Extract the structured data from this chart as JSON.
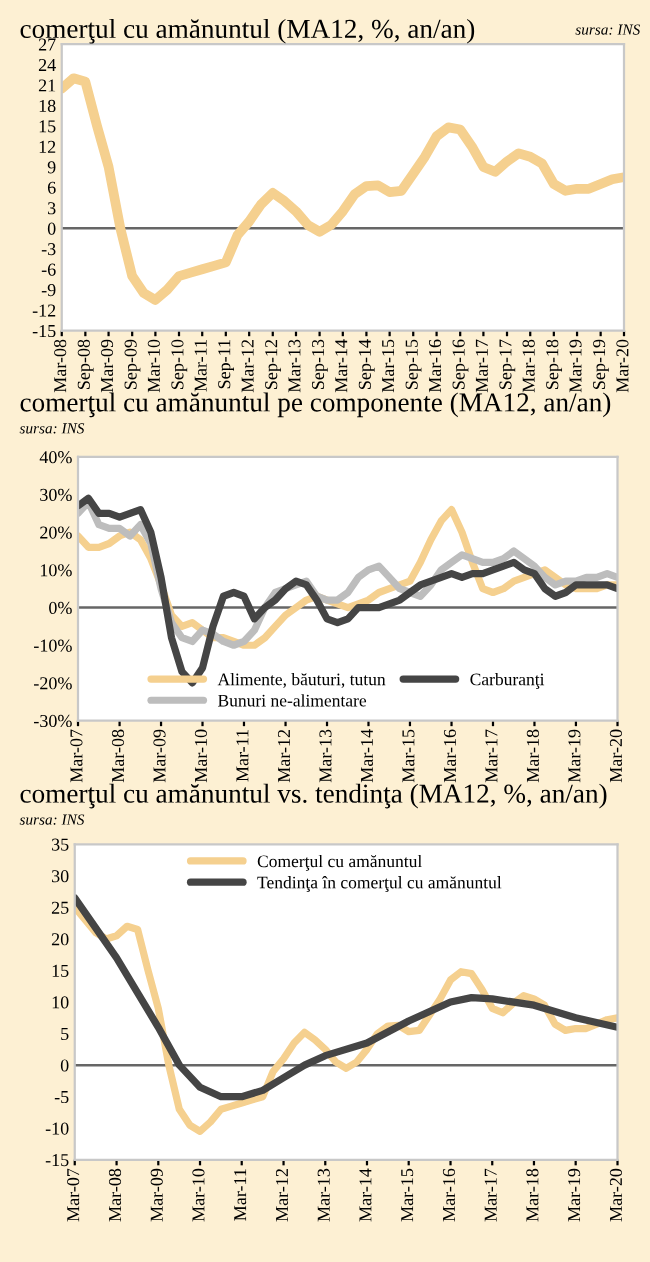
{
  "chart_data": [
    {
      "type": "line",
      "title": "comerţul cu amănuntul (MA12, %, an/an)",
      "annotations": [
        "sursa: INS"
      ],
      "grid": false,
      "legend": false,
      "ref_lines": [
        {
          "axis": "y",
          "value": 0,
          "color": "#666666"
        }
      ],
      "x": [
        "2008-03",
        "2008-06",
        "2008-09",
        "2008-12",
        "2009-03",
        "2009-06",
        "2009-09",
        "2009-12",
        "2010-03",
        "2010-06",
        "2010-09",
        "2010-12",
        "2011-03",
        "2011-06",
        "2011-09",
        "2011-12",
        "2012-03",
        "2012-06",
        "2012-09",
        "2012-12",
        "2013-03",
        "2013-06",
        "2013-09",
        "2013-12",
        "2014-03",
        "2014-06",
        "2014-09",
        "2014-12",
        "2015-03",
        "2015-06",
        "2015-09",
        "2015-12",
        "2016-03",
        "2016-06",
        "2016-09",
        "2016-12",
        "2017-03",
        "2017-06",
        "2017-09",
        "2017-12",
        "2018-03",
        "2018-06",
        "2018-09",
        "2018-12",
        "2019-03",
        "2019-06",
        "2019-09",
        "2019-12",
        "2020-03"
      ],
      "series": [
        {
          "color": "#f5d08f",
          "values": [
            20.5,
            22,
            21.5,
            15,
            9,
            0,
            -7,
            -9.5,
            -10.5,
            -9,
            -7,
            -6.5,
            -6,
            -5.5,
            -5,
            -1,
            1,
            3.5,
            5.2,
            4,
            2.5,
            0.5,
            -0.5,
            0.5,
            2.5,
            5,
            6.2,
            6.3,
            5.3,
            5.5,
            8,
            10.5,
            13.5,
            14.8,
            14.5,
            12,
            9,
            8.3,
            9.8,
            11,
            10.5,
            9.5,
            6.5,
            5.5,
            5.8,
            5.8,
            6.5,
            7.2,
            7.5
          ]
        }
      ],
      "xlim": [
        "2008-03",
        "2020-03"
      ],
      "ylim": [
        -15,
        27
      ],
      "yticks": [
        -15,
        -12,
        -9,
        -6,
        -3,
        0,
        3,
        6,
        9,
        12,
        15,
        18,
        21,
        24,
        27
      ],
      "xticks": [
        {
          "value": "2008-03",
          "label": "Mar-08"
        },
        {
          "value": "2008-09",
          "label": "Sep-08"
        },
        {
          "value": "2009-03",
          "label": "Mar-09"
        },
        {
          "value": "2009-09",
          "label": "Sep-09"
        },
        {
          "value": "2010-03",
          "label": "Mar-10"
        },
        {
          "value": "2010-09",
          "label": "Sep-10"
        },
        {
          "value": "2011-03",
          "label": "Mar-11"
        },
        {
          "value": "2011-09",
          "label": "Sep-11"
        },
        {
          "value": "2012-03",
          "label": "Mar-12"
        },
        {
          "value": "2012-09",
          "label": "Sep-12"
        },
        {
          "value": "2013-03",
          "label": "Mar-13"
        },
        {
          "value": "2013-09",
          "label": "Sep-13"
        },
        {
          "value": "2014-03",
          "label": "Mar-14"
        },
        {
          "value": "2014-09",
          "label": "Sep-14"
        },
        {
          "value": "2015-03",
          "label": "Mar-15"
        },
        {
          "value": "2015-09",
          "label": "Sep-15"
        },
        {
          "value": "2016-03",
          "label": "Mar-16"
        },
        {
          "value": "2016-09",
          "label": "Sep-16"
        },
        {
          "value": "2017-03",
          "label": "Mar-17"
        },
        {
          "value": "2017-09",
          "label": "Sep-17"
        },
        {
          "value": "2018-03",
          "label": "Mar-18"
        },
        {
          "value": "2018-09",
          "label": "Sep-18"
        },
        {
          "value": "2019-03",
          "label": "Mar-19"
        },
        {
          "value": "2019-09",
          "label": "Sep-19"
        },
        {
          "value": "2020-03",
          "label": "Mar-20"
        }
      ]
    },
    {
      "type": "line",
      "title": "comerţul cu amănuntul pe componente (MA12, an/an)",
      "annotations": [
        "sursa: INS"
      ],
      "grid": false,
      "legend": "bottom",
      "ref_lines": [
        {
          "axis": "y",
          "value": 0,
          "color": "#666666"
        }
      ],
      "x": [
        "2007-03",
        "2007-06",
        "2007-09",
        "2007-12",
        "2008-03",
        "2008-06",
        "2008-09",
        "2008-12",
        "2009-03",
        "2009-06",
        "2009-09",
        "2009-12",
        "2010-03",
        "2010-06",
        "2010-09",
        "2010-12",
        "2011-03",
        "2011-06",
        "2011-09",
        "2011-12",
        "2012-03",
        "2012-06",
        "2012-09",
        "2012-12",
        "2013-03",
        "2013-06",
        "2013-09",
        "2013-12",
        "2014-03",
        "2014-06",
        "2014-09",
        "2014-12",
        "2015-03",
        "2015-06",
        "2015-09",
        "2015-12",
        "2016-03",
        "2016-06",
        "2016-09",
        "2016-12",
        "2017-03",
        "2017-06",
        "2017-09",
        "2017-12",
        "2018-03",
        "2018-06",
        "2018-09",
        "2018-12",
        "2019-03",
        "2019-06",
        "2019-09",
        "2019-12",
        "2020-03"
      ],
      "series": [
        {
          "name": "Alimente, băuturi, tutun",
          "color": "#f5d08f",
          "values": [
            19,
            16,
            16,
            17,
            19,
            20,
            18,
            13,
            6,
            -2,
            -5,
            -4,
            -6,
            -8,
            -8,
            -9,
            -10,
            -10,
            -8,
            -5,
            -2,
            0,
            2,
            3,
            2,
            1,
            0,
            1,
            2,
            4,
            5,
            6,
            7,
            12,
            18,
            23,
            26,
            20,
            12,
            5,
            4,
            5,
            7,
            8,
            9,
            10,
            8,
            6,
            5,
            5,
            5,
            6,
            6
          ]
        },
        {
          "name": "Bunuri ne-alimentare",
          "color": "#bdbdbd",
          "values": [
            25,
            28,
            22,
            21,
            21,
            19,
            22,
            17,
            5,
            -4,
            -8,
            -9,
            -6,
            -7,
            -9,
            -10,
            -9,
            -6,
            0,
            4,
            5,
            6,
            7,
            3,
            2,
            2,
            4,
            8,
            10,
            11,
            8,
            5,
            4,
            3,
            6,
            10,
            12,
            14,
            13,
            12,
            12,
            13,
            15,
            13,
            11,
            8,
            6,
            7,
            7,
            8,
            8,
            9,
            8
          ]
        },
        {
          "name": "Carburanţi",
          "color": "#454545",
          "values": [
            27,
            29,
            25,
            25,
            24,
            25,
            26,
            20,
            8,
            -8,
            -17,
            -20,
            -16,
            -5,
            3,
            4,
            3,
            -3,
            0,
            2,
            5,
            7,
            6,
            2,
            -3,
            -4,
            -3,
            0,
            0,
            0,
            1,
            2,
            4,
            6,
            7,
            8,
            9,
            8,
            9,
            9,
            10,
            11,
            12,
            10,
            9,
            5,
            3,
            4,
            6,
            6,
            6,
            6,
            5
          ]
        }
      ],
      "xlim": [
        "2007-03",
        "2020-03"
      ],
      "ylim": [
        -30,
        40
      ],
      "yticks": [
        {
          "value": -30,
          "label": "-30%"
        },
        {
          "value": -20,
          "label": "-20%"
        },
        {
          "value": -10,
          "label": "-10%"
        },
        {
          "value": 0,
          "label": "0%"
        },
        {
          "value": 10,
          "label": "10%"
        },
        {
          "value": 20,
          "label": "20%"
        },
        {
          "value": 30,
          "label": "30%"
        },
        {
          "value": 40,
          "label": "40%"
        }
      ],
      "xticks": [
        {
          "value": "2007-03",
          "label": "Mar-07"
        },
        {
          "value": "2008-03",
          "label": "Mar-08"
        },
        {
          "value": "2009-03",
          "label": "Mar-09"
        },
        {
          "value": "2010-03",
          "label": "Mar-10"
        },
        {
          "value": "2011-03",
          "label": "Mar-11"
        },
        {
          "value": "2012-03",
          "label": "Mar-12"
        },
        {
          "value": "2013-03",
          "label": "Mar-13"
        },
        {
          "value": "2014-03",
          "label": "Mar-14"
        },
        {
          "value": "2015-03",
          "label": "Mar-15"
        },
        {
          "value": "2016-03",
          "label": "Mar-16"
        },
        {
          "value": "2017-03",
          "label": "Mar-17"
        },
        {
          "value": "2018-03",
          "label": "Mar-18"
        },
        {
          "value": "2019-03",
          "label": "Mar-19"
        },
        {
          "value": "2020-03",
          "label": "Mar-20"
        }
      ]
    },
    {
      "type": "line",
      "title": "comerţul cu amănuntul vs. tendinţa (MA12, %, an/an)",
      "annotations": [
        "sursa: INS"
      ],
      "grid": false,
      "legend": "top",
      "ref_lines": [
        {
          "axis": "y",
          "value": 0,
          "color": "#666666"
        }
      ],
      "series": [
        {
          "name": "Comerţul cu amănuntul",
          "color": "#f5d08f",
          "x": [
            "2007-03",
            "2007-06",
            "2007-09",
            "2007-12",
            "2008-03",
            "2008-06",
            "2008-09",
            "2008-12",
            "2009-03",
            "2009-06",
            "2009-09",
            "2009-12",
            "2010-03",
            "2010-06",
            "2010-09",
            "2010-12",
            "2011-03",
            "2011-06",
            "2011-09",
            "2011-12",
            "2012-03",
            "2012-06",
            "2012-09",
            "2012-12",
            "2013-03",
            "2013-06",
            "2013-09",
            "2013-12",
            "2014-03",
            "2014-06",
            "2014-09",
            "2014-12",
            "2015-03",
            "2015-06",
            "2015-09",
            "2015-12",
            "2016-03",
            "2016-06",
            "2016-09",
            "2016-12",
            "2017-03",
            "2017-06",
            "2017-09",
            "2017-12",
            "2018-03",
            "2018-06",
            "2018-09",
            "2018-12",
            "2019-03",
            "2019-06",
            "2019-09",
            "2019-12",
            "2020-03"
          ],
          "values": [
            25,
            23,
            21,
            20,
            20.5,
            22,
            21.5,
            15,
            9,
            0,
            -7,
            -9.5,
            -10.5,
            -9,
            -7,
            -6.5,
            -6,
            -5.5,
            -5,
            -1,
            1,
            3.5,
            5.2,
            4,
            2.5,
            0.5,
            -0.5,
            0.5,
            2.5,
            5,
            6.2,
            6.3,
            5.3,
            5.5,
            8,
            10.5,
            13.5,
            14.8,
            14.5,
            12,
            9,
            8.3,
            9.8,
            11,
            10.5,
            9.5,
            6.5,
            5.5,
            5.8,
            5.8,
            6.5,
            7.2,
            7.5
          ]
        },
        {
          "name": "Tendinţa în comerţul cu amănuntul",
          "color": "#454545",
          "x": [
            "2007-03",
            "2008-03",
            "2009-03",
            "2009-09",
            "2010-03",
            "2010-09",
            "2011-03",
            "2011-09",
            "2012-03",
            "2012-09",
            "2013-03",
            "2014-03",
            "2015-03",
            "2016-03",
            "2016-09",
            "2017-03",
            "2018-03",
            "2019-03",
            "2020-03"
          ],
          "values": [
            26.5,
            17,
            6,
            0,
            -3.5,
            -5,
            -5,
            -4,
            -2,
            0,
            1.5,
            3.5,
            7,
            10,
            10.7,
            10.5,
            9.5,
            7.5,
            6
          ]
        }
      ],
      "xlim": [
        "2007-03",
        "2020-03"
      ],
      "ylim": [
        -15,
        35
      ],
      "yticks": [
        -15,
        -10,
        -5,
        0,
        5,
        10,
        15,
        20,
        25,
        30,
        35
      ],
      "xticks": [
        {
          "value": "2007-03",
          "label": "Mar-07"
        },
        {
          "value": "2008-03",
          "label": "Mar-08"
        },
        {
          "value": "2009-03",
          "label": "Mar-09"
        },
        {
          "value": "2010-03",
          "label": "Mar-10"
        },
        {
          "value": "2011-03",
          "label": "Mar-11"
        },
        {
          "value": "2012-03",
          "label": "Mar-12"
        },
        {
          "value": "2013-03",
          "label": "Mar-13"
        },
        {
          "value": "2014-03",
          "label": "Mar-14"
        },
        {
          "value": "2015-03",
          "label": "Mar-15"
        },
        {
          "value": "2016-03",
          "label": "Mar-16"
        },
        {
          "value": "2017-03",
          "label": "Mar-17"
        },
        {
          "value": "2018-03",
          "label": "Mar-18"
        },
        {
          "value": "2019-03",
          "label": "Mar-19"
        },
        {
          "value": "2020-03",
          "label": "Mar-20"
        }
      ]
    }
  ]
}
